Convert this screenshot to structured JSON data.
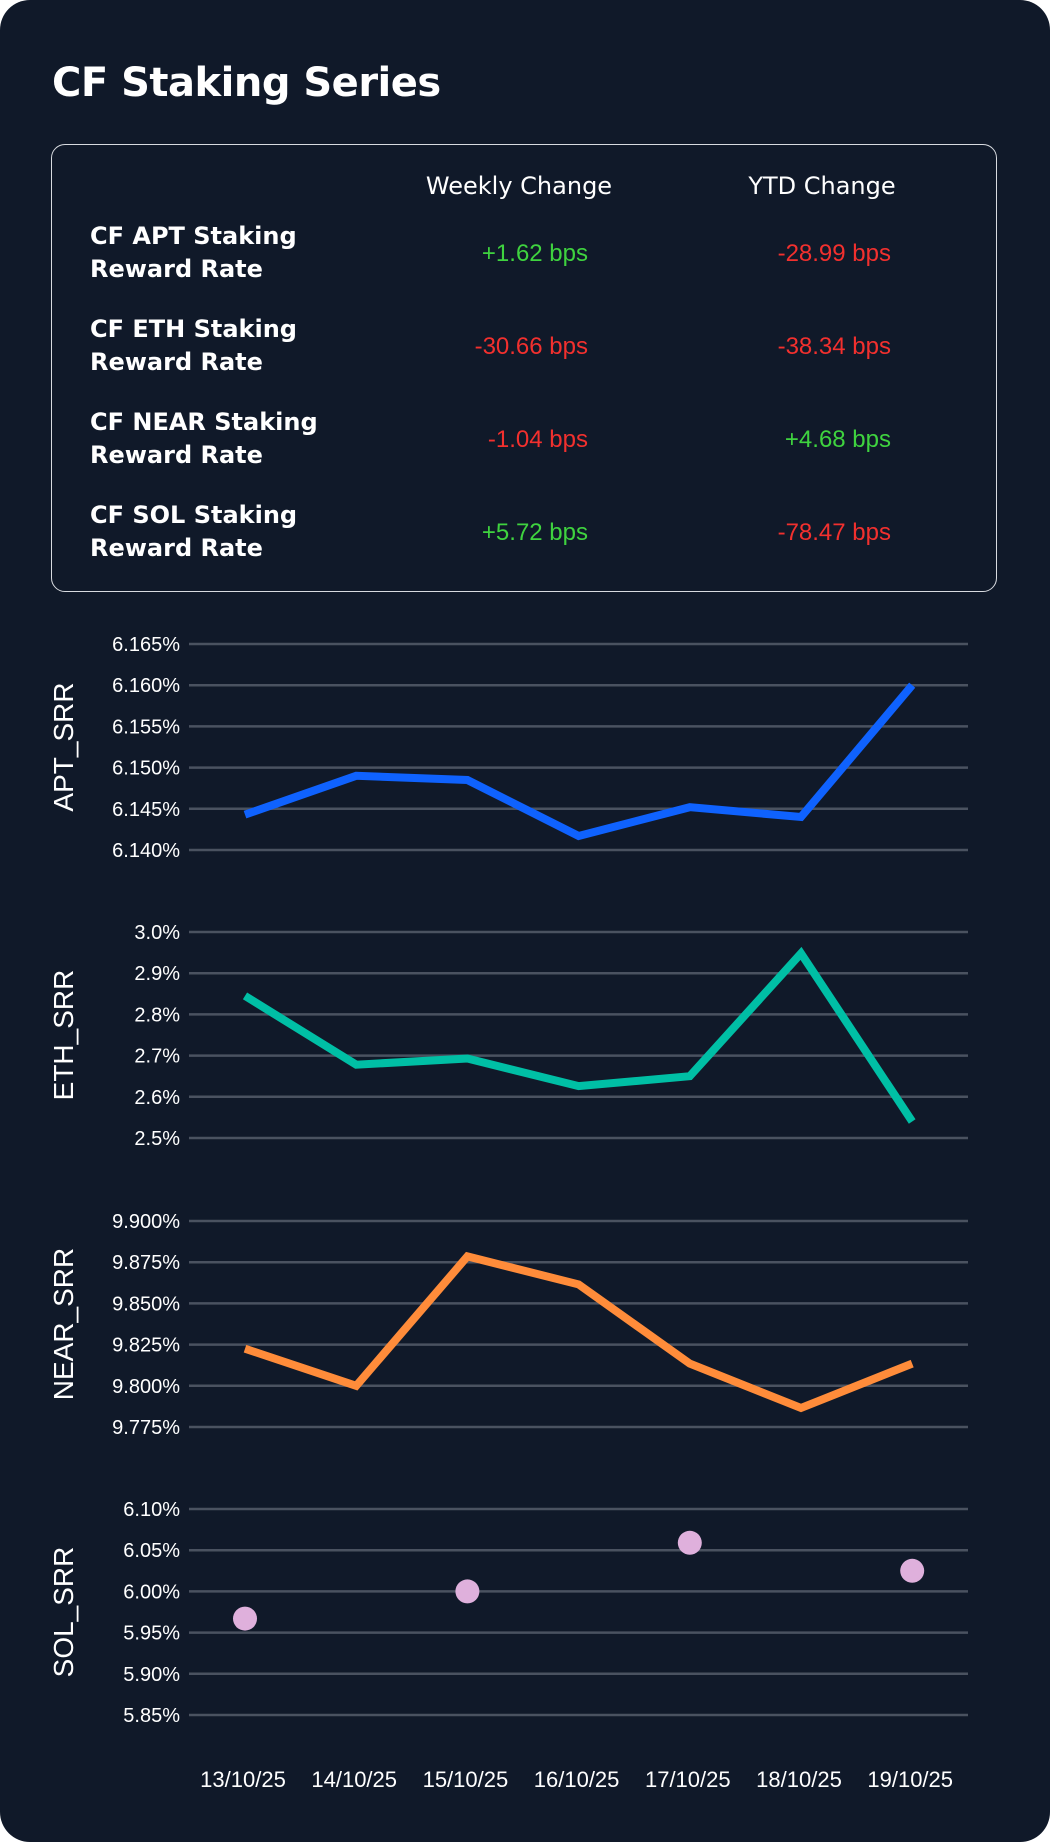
{
  "title": "CF Staking Series",
  "summary": {
    "columns": [
      "Weekly Change",
      "YTD Change"
    ],
    "rows": [
      {
        "label_line1": "CF APT Staking",
        "label_line2": "Reward Rate",
        "weekly": "+1.62 bps",
        "ytd": "-28.99 bps"
      },
      {
        "label_line1": "CF ETH Staking",
        "label_line2": "Reward Rate",
        "weekly": "-30.66 bps",
        "ytd": "-38.34 bps"
      },
      {
        "label_line1": "CF NEAR Staking",
        "label_line2": "Reward Rate",
        "weekly": "-1.04 bps",
        "ytd": "+4.68 bps"
      },
      {
        "label_line1": "CF SOL Staking",
        "label_line2": "Reward Rate",
        "weekly": "+5.72 bps",
        "ytd": "-78.47 bps"
      }
    ],
    "colors": {
      "positive": "#3fd33f",
      "negative": "#f2302e"
    }
  },
  "chart_data": [
    {
      "type": "line",
      "ylabel": "APT_SRR",
      "x": [
        "13/10/25",
        "14/10/25",
        "15/10/25",
        "16/10/25",
        "17/10/25",
        "18/10/25",
        "19/10/25"
      ],
      "values": [
        6.1443,
        6.149,
        6.1485,
        6.1417,
        6.1452,
        6.144,
        6.16
      ],
      "ylim": [
        6.14,
        6.165
      ],
      "yticks": [
        "6.165%",
        "6.160%",
        "6.155%",
        "6.150%",
        "6.145%",
        "6.140%"
      ],
      "ytick_values": [
        6.165,
        6.16,
        6.155,
        6.15,
        6.145,
        6.14
      ],
      "color": "#0f62fe",
      "grid": true
    },
    {
      "type": "line",
      "ylabel": "ETH_SRR",
      "x": [
        "13/10/25",
        "14/10/25",
        "15/10/25",
        "16/10/25",
        "17/10/25",
        "18/10/25",
        "19/10/25"
      ],
      "values": [
        2.845,
        2.678,
        2.693,
        2.626,
        2.65,
        2.948,
        2.54
      ],
      "ylim": [
        2.5,
        3.0
      ],
      "yticks": [
        "3.0%",
        "2.9%",
        "2.8%",
        "2.7%",
        "2.6%",
        "2.5%"
      ],
      "ytick_values": [
        3.0,
        2.9,
        2.8,
        2.7,
        2.6,
        2.5
      ],
      "color": "#00bfa5",
      "grid": true
    },
    {
      "type": "line",
      "ylabel": "NEAR_SRR",
      "x": [
        "13/10/25",
        "14/10/25",
        "15/10/25",
        "16/10/25",
        "17/10/25",
        "18/10/25",
        "19/10/25"
      ],
      "values": [
        9.8225,
        9.8,
        9.8785,
        9.8615,
        9.8135,
        9.7865,
        9.8135
      ],
      "ylim": [
        9.775,
        9.9
      ],
      "yticks": [
        "9.900%",
        "9.875%",
        "9.850%",
        "9.825%",
        "9.800%",
        "9.775%"
      ],
      "ytick_values": [
        9.9,
        9.875,
        9.85,
        9.825,
        9.8,
        9.775
      ],
      "color": "#ff8c3a",
      "grid": true
    },
    {
      "type": "scatter",
      "ylabel": "SOL_SRR",
      "x": [
        "13/10/25",
        "14/10/25",
        "15/10/25",
        "16/10/25",
        "17/10/25",
        "18/10/25",
        "19/10/25"
      ],
      "values": [
        5.967,
        null,
        6.0,
        null,
        6.059,
        null,
        6.025
      ],
      "ylim": [
        5.85,
        6.1
      ],
      "yticks": [
        "6.10%",
        "6.05%",
        "6.00%",
        "5.95%",
        "5.90%",
        "5.85%"
      ],
      "ytick_values": [
        6.1,
        6.05,
        6.0,
        5.95,
        5.9,
        5.85
      ],
      "color": "#dfb0dc",
      "grid": true
    }
  ],
  "xticks": [
    "13/10/25",
    "14/10/25",
    "15/10/25",
    "16/10/25",
    "17/10/25",
    "18/10/25",
    "19/10/25"
  ],
  "gridline_color": "#4a5260"
}
